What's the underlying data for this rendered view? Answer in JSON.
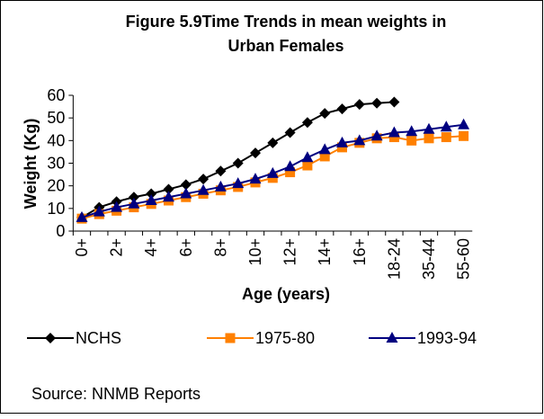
{
  "chart_data": {
    "type": "line",
    "title": [
      "Figure 5.9Time Trends in mean weights in",
      "Urban Females"
    ],
    "y_label": "Weight (Kg)",
    "x_label": "Age (years)",
    "categories": [
      "0+",
      null,
      "2+",
      null,
      "4+",
      null,
      "6+",
      null,
      "8+",
      null,
      "10+",
      null,
      "12+",
      null,
      "14+",
      null,
      "16+",
      null,
      "18-24",
      null,
      "35-44",
      null,
      "55-60"
    ],
    "series": [
      {
        "name": "NCHS",
        "color": "#000000",
        "marker": "diamond",
        "values": [
          6,
          10.5,
          13,
          15,
          16.5,
          18.5,
          20.5,
          23,
          26.5,
          30,
          34.5,
          39,
          43.5,
          48,
          52,
          54,
          56,
          56.5,
          57,
          null,
          null,
          null,
          null
        ]
      },
      {
        "name": "1975-80",
        "color": "#ff8000",
        "marker": "square",
        "values": [
          5.5,
          7.5,
          9,
          10.5,
          12,
          13.5,
          15,
          16.5,
          18,
          19.5,
          21.5,
          23.5,
          26,
          29,
          33,
          37,
          39,
          41,
          41.5,
          40,
          41,
          41.5,
          42
        ]
      },
      {
        "name": "1993-94",
        "color": "#000080",
        "marker": "triangle",
        "values": [
          6,
          8.5,
          10.5,
          12,
          13.5,
          15,
          16.5,
          18,
          19.5,
          21,
          23,
          25.5,
          28.5,
          32.5,
          36,
          39,
          40,
          42,
          43.5,
          44,
          45,
          46,
          47
        ]
      }
    ],
    "ylim": [
      0,
      60
    ],
    "yticks": [
      0,
      10,
      20,
      30,
      40,
      50,
      60
    ],
    "source": "Source: NNMB Reports"
  }
}
